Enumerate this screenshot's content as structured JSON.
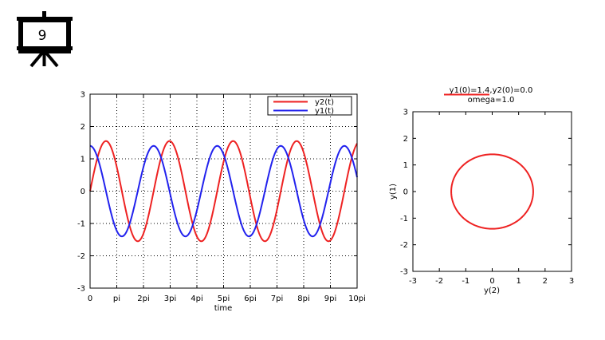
{
  "slide_badge": {
    "number": "9",
    "icon": "projector-screen-icon"
  },
  "chart_data": [
    {
      "type": "line",
      "title": "",
      "xlabel": "time",
      "ylabel": "",
      "xlim": [
        0,
        31.4159
      ],
      "ylim": [
        -3,
        3
      ],
      "x_tick_labels": [
        "0",
        "pi",
        "2pi",
        "3pi",
        "4pi",
        "5pi",
        "6pi",
        "7pi",
        "8pi",
        "9pi",
        "10pi"
      ],
      "y_tick_labels": [
        "-3",
        "-2",
        "-1",
        "0",
        "1",
        "2",
        "3"
      ],
      "grid": true,
      "legend": "top-right",
      "series": [
        {
          "name": "y2(t)",
          "color": "#ee2222",
          "expression": "approx 1.55*sin(0.84*t)",
          "amplitude": 1.55,
          "start_value": 0
        },
        {
          "name": "y1(t)",
          "color": "#2222ee",
          "expression": "approx 1.4*cos(0.84*t)",
          "amplitude": 1.4,
          "start_value": 1.4
        }
      ]
    },
    {
      "type": "line",
      "title": "y1(0)=1.4,y2(0)=0.0",
      "subtitle": "omega=1.0",
      "xlabel": "y(2)",
      "ylabel": "y(1)",
      "xlim": [
        -3,
        3
      ],
      "ylim": [
        -3,
        3
      ],
      "x_tick_labels": [
        "-3",
        "-2",
        "-1",
        "0",
        "1",
        "2",
        "3"
      ],
      "y_tick_labels": [
        "-3",
        "-2",
        "-1",
        "0",
        "1",
        "2",
        "3"
      ],
      "grid": false,
      "series": [
        {
          "color": "#ee2222",
          "x_half_width": 1.55,
          "y_half_height": 1.4,
          "shape": "closed orbit"
        }
      ]
    }
  ]
}
